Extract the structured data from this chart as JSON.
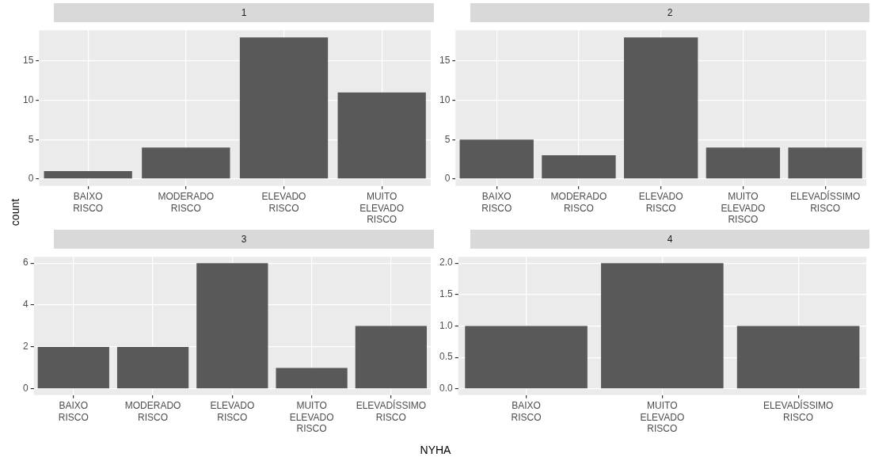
{
  "chart_data": [
    {
      "type": "bar",
      "title": "1",
      "xlabel": "NYHA",
      "ylabel": "count",
      "categories": [
        "BAIXO RISCO",
        "MODERADO RISCO",
        "ELEVADO RISCO",
        "MUITO ELEVADO RISCO"
      ],
      "values": [
        1,
        4,
        18,
        11
      ],
      "color": "#595959",
      "ylim": [
        -0.9,
        18.9
      ],
      "yticks": [
        0,
        5,
        10,
        15
      ],
      "grid": true,
      "legend": false
    },
    {
      "type": "bar",
      "title": "2",
      "categories": [
        "BAIXO RISCO",
        "MODERADO RISCO",
        "ELEVADO RISCO",
        "MUITO ELEVADO RISCO",
        "ELEVADÍSSIMO RISCO"
      ],
      "values": [
        5,
        3,
        18,
        4,
        4
      ],
      "color": "#595959",
      "ylim": [
        -0.9,
        18.9
      ],
      "yticks": [
        0,
        5,
        10,
        15
      ],
      "grid": true,
      "legend": false
    },
    {
      "type": "bar",
      "title": "3",
      "categories": [
        "BAIXO RISCO",
        "MODERADO RISCO",
        "ELEVADO RISCO",
        "MUITO ELEVADO RISCO",
        "ELEVADÍSSIMO RISCO"
      ],
      "values": [
        2,
        2,
        6,
        1,
        3
      ],
      "color": "#595959",
      "ylim": [
        -0.3,
        6.3
      ],
      "yticks": [
        0,
        2,
        4,
        6
      ],
      "grid": true,
      "legend": false
    },
    {
      "type": "bar",
      "title": "4",
      "categories": [
        "BAIXO RISCO",
        "MUITO ELEVADO RISCO",
        "ELEVADÍSSIMO RISCO"
      ],
      "values": [
        1,
        2,
        1
      ],
      "color": "#595959",
      "ylim": [
        -0.1,
        2.1
      ],
      "yticks": [
        {
          "value": 0,
          "label": "0.0"
        },
        {
          "value": 0.5,
          "label": "0.5"
        },
        {
          "value": 1,
          "label": "1.0"
        },
        {
          "value": 1.5,
          "label": "1.5"
        },
        {
          "value": 2,
          "label": "2.0"
        }
      ],
      "grid": true,
      "legend": false
    }
  ]
}
